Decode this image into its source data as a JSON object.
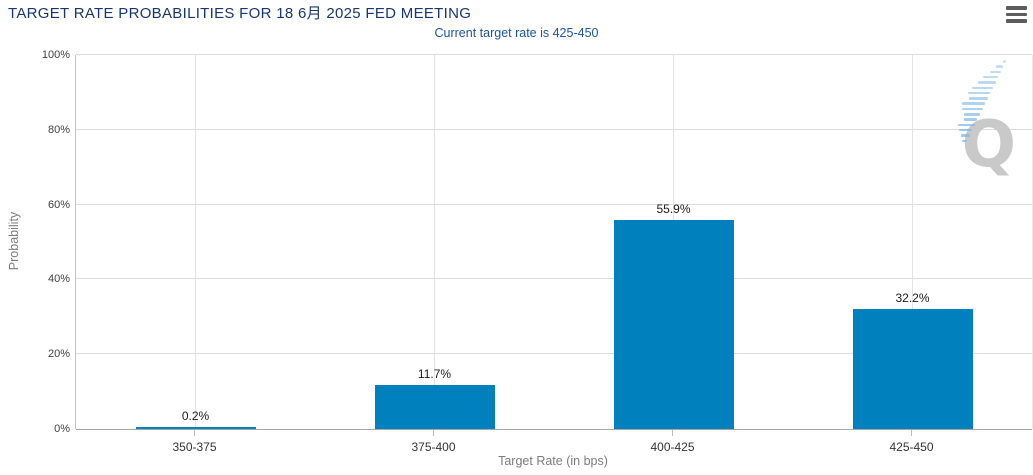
{
  "chart_data": {
    "type": "bar",
    "title": "TARGET RATE PROBABILITIES FOR 18 6月 2025 FED MEETING",
    "subtitle": "Current target rate is 425-450",
    "categories": [
      "350-375",
      "375-400",
      "400-425",
      "425-450"
    ],
    "values": [
      0.2,
      11.7,
      55.9,
      32.2
    ],
    "value_labels": [
      "0.2%",
      "11.7%",
      "55.9%",
      "32.2%"
    ],
    "xlabel": "Target Rate (in bps)",
    "ylabel": "Probability",
    "ylim": [
      0,
      100
    ],
    "yticks": [
      "0%",
      "20%",
      "40%",
      "60%",
      "80%",
      "100%"
    ],
    "grid": true,
    "legend": false,
    "bar_color": "#0081bd",
    "watermark_letter": "Q"
  },
  "colors": {
    "title_text": "#17376e",
    "subtitle_text": "#1b55a4",
    "bar": "#0081bd",
    "gridline": "#dddddd",
    "axis_line": "#a6a6a6",
    "tick_text": "#333333",
    "axis_title_text": "#7c7c7c",
    "menu_icon": "#5d5d5d",
    "watermark": "#c9c9c9",
    "watermark_dashes": "#7db9e6"
  }
}
